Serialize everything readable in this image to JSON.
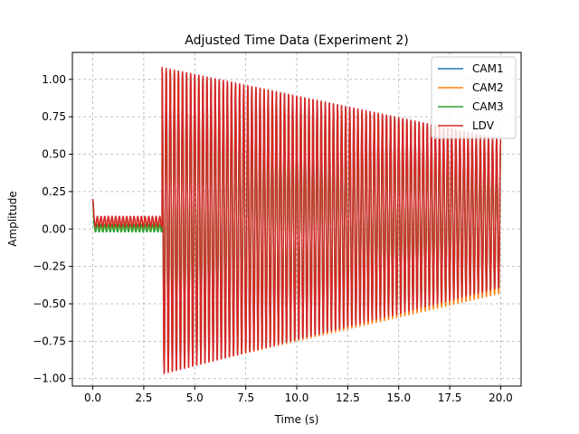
{
  "chart_data": {
    "type": "line",
    "title": "Adjusted Time Data (Experiment 2)",
    "xlabel": "Time (s)",
    "ylabel": "Amplitude",
    "xlim": [
      -1.0,
      21.0
    ],
    "ylim": [
      -1.05,
      1.18
    ],
    "xticks": [
      0.0,
      2.5,
      5.0,
      7.5,
      10.0,
      12.5,
      15.0,
      17.5,
      20.0
    ],
    "xtick_labels": [
      "0.0",
      "2.5",
      "5.0",
      "7.5",
      "10.0",
      "12.5",
      "15.0",
      "17.5",
      "20.0"
    ],
    "yticks": [
      -1.0,
      -0.75,
      -0.5,
      -0.25,
      0.0,
      0.25,
      0.5,
      0.75,
      1.0
    ],
    "ytick_labels": [
      "−1.00",
      "−0.75",
      "−0.50",
      "−0.25",
      "0.00",
      "0.25",
      "0.50",
      "0.75",
      "1.00"
    ],
    "grid": true,
    "legend_position": "top-right",
    "series": [
      {
        "name": "CAM1",
        "color": "#1f77b4",
        "signal": {
          "t_start": 0.0,
          "t_end": 20.0,
          "t_onset": 3.4,
          "period": 0.2,
          "pre": {
            "center": 0.04,
            "amp": 0.035
          },
          "post": {
            "max_start": 1.07,
            "max_end": 0.6,
            "min_start": -0.96,
            "min_end": -0.41
          }
        }
      },
      {
        "name": "CAM2",
        "color": "#ff7f0e",
        "signal": {
          "t_start": 0.0,
          "t_end": 20.0,
          "t_onset": 3.4,
          "period": 0.2,
          "pre": {
            "center": 0.04,
            "amp": 0.035
          },
          "post": {
            "max_start": 1.07,
            "max_end": 0.59,
            "min_start": -0.96,
            "min_end": -0.43
          }
        }
      },
      {
        "name": "CAM3",
        "color": "#2ca02c",
        "signal": {
          "t_start": 0.0,
          "t_end": 20.0,
          "t_onset": 3.4,
          "period": 0.2,
          "pre": {
            "center": 0.005,
            "amp": 0.025
          },
          "post": {
            "max_start": 0.92,
            "max_end": 0.52,
            "min_start": -0.8,
            "min_end": -0.38
          }
        }
      },
      {
        "name": "LDV",
        "color": "#d62728",
        "signal": {
          "t_start": 0.0,
          "t_end": 20.0,
          "t_onset": 3.4,
          "period": 0.2,
          "pre": {
            "center": 0.05,
            "amp": 0.035
          },
          "post": {
            "max_start": 1.08,
            "max_end": 0.6,
            "min_start": -0.97,
            "min_end": -0.39
          }
        }
      }
    ]
  }
}
